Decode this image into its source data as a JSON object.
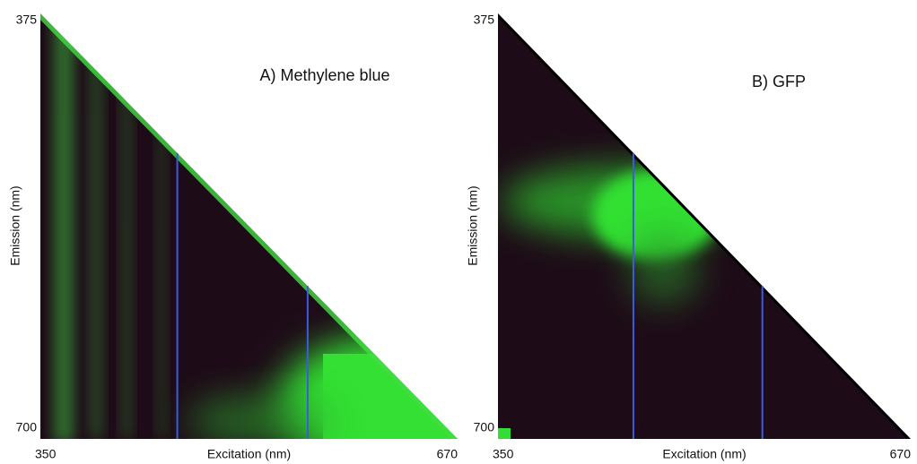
{
  "chart_data": [
    {
      "type": "heatmap",
      "title": "A) Methylene blue",
      "x_label": "Excitation (nm)",
      "y_label": "Emission (nm)",
      "xlim": [
        350,
        670
      ],
      "ylim": [
        375,
        700
      ],
      "xticks": [
        350,
        670
      ],
      "yticks": [
        375,
        700
      ],
      "markers": [
        455,
        555
      ],
      "marker_color": "#3b5be0"
    },
    {
      "type": "heatmap",
      "title": "B) GFP",
      "x_label": "Excitation (nm)",
      "y_label": "Emission (nm)",
      "xlim": [
        350,
        670
      ],
      "ylim": [
        375,
        700
      ],
      "xticks": [
        350,
        670
      ],
      "yticks": [
        375,
        700
      ],
      "markers": [
        455,
        555
      ],
      "marker_color": "#3b5be0"
    }
  ]
}
